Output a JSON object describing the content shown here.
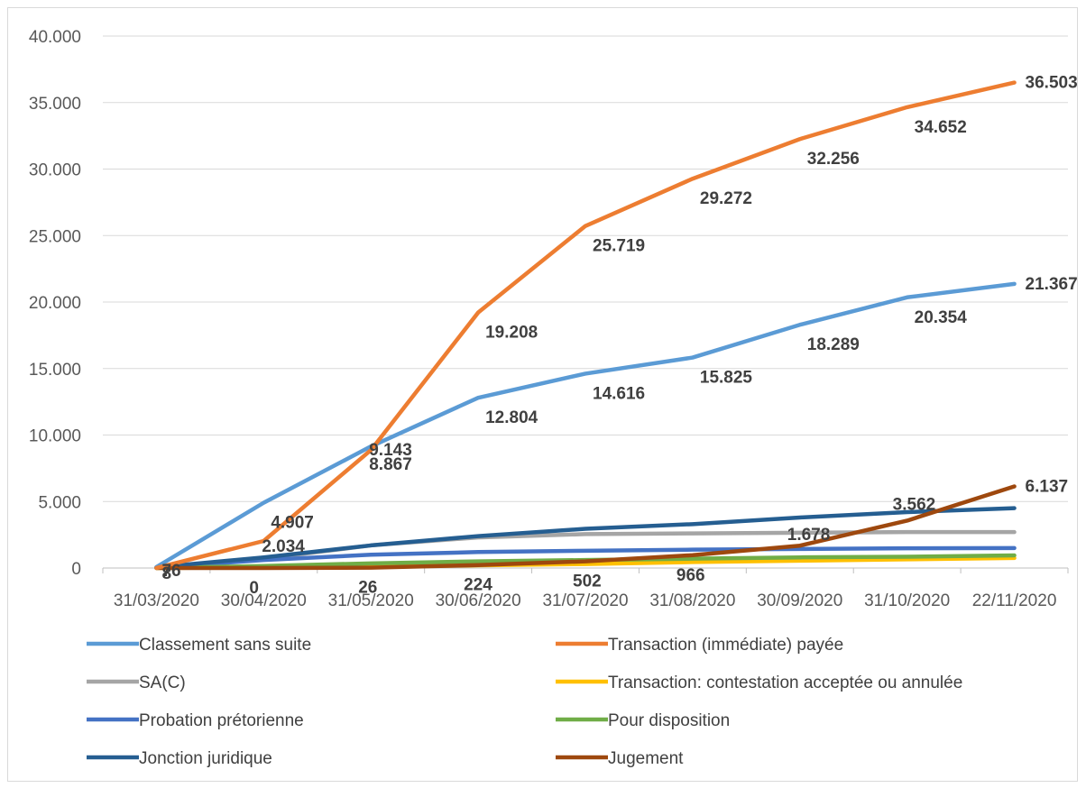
{
  "chart_data": {
    "type": "line",
    "title": "",
    "xlabel": "",
    "ylabel": "",
    "categories": [
      "31/03/2020",
      "30/04/2020",
      "31/05/2020",
      "30/06/2020",
      "31/07/2020",
      "31/08/2020",
      "30/09/2020",
      "31/10/2020",
      "22/11/2020"
    ],
    "ylim": [
      0,
      40000
    ],
    "yticks": [
      0,
      5000,
      10000,
      15000,
      20000,
      25000,
      30000,
      35000,
      40000
    ],
    "ytick_labels": [
      "0",
      "5.000",
      "10.000",
      "15.000",
      "20.000",
      "25.000",
      "30.000",
      "35.000",
      "40.000"
    ],
    "grid": "horizontal",
    "legend_position": "bottom",
    "series": [
      {
        "name": "Classement sans suite",
        "color": "#5b9bd5",
        "values": [
          76,
          4907,
          9143,
          12804,
          14616,
          15825,
          18289,
          20354,
          21367
        ],
        "labels": [
          "76",
          "4.907",
          "9.143",
          "12.804",
          "14.616",
          "15.825",
          "18.289",
          "20.354",
          "21.367"
        ]
      },
      {
        "name": "Transaction (immédiate) payée",
        "color": "#ed7d31",
        "values": [
          8,
          2034,
          8867,
          19208,
          25719,
          29272,
          32256,
          34652,
          36503
        ],
        "labels": [
          "8",
          "2.034",
          "8.867",
          "19.208",
          "25.719",
          "29.272",
          "32.256",
          "34.652",
          "36.503"
        ]
      },
      {
        "name": "SA(C)",
        "color": "#a5a5a5",
        "values": [
          60,
          700,
          1700,
          2300,
          2550,
          2600,
          2650,
          2700,
          2700
        ],
        "labels": []
      },
      {
        "name": "Transaction: contestation acceptée ou annulée",
        "color": "#ffc000",
        "values": [
          0,
          50,
          100,
          200,
          300,
          450,
          550,
          650,
          750
        ],
        "labels": []
      },
      {
        "name": "Probation prétorienne",
        "color": "#4472c4",
        "values": [
          20,
          600,
          1000,
          1200,
          1300,
          1380,
          1430,
          1480,
          1500
        ],
        "labels": []
      },
      {
        "name": "Pour disposition",
        "color": "#70ad47",
        "values": [
          10,
          150,
          350,
          500,
          600,
          700,
          800,
          850,
          950
        ],
        "labels": []
      },
      {
        "name": "Jonction juridique",
        "color": "#255e91",
        "values": [
          50,
          800,
          1700,
          2400,
          2950,
          3300,
          3800,
          4200,
          4500
        ],
        "labels": []
      },
      {
        "name": "Jugement",
        "color": "#9e480e",
        "values": [
          0,
          0,
          26,
          224,
          502,
          966,
          1678,
          3562,
          6137
        ],
        "labels": [
          "",
          "0",
          "26",
          "224",
          "502",
          "966",
          "1.678",
          "3.562",
          "6.137"
        ]
      }
    ]
  }
}
